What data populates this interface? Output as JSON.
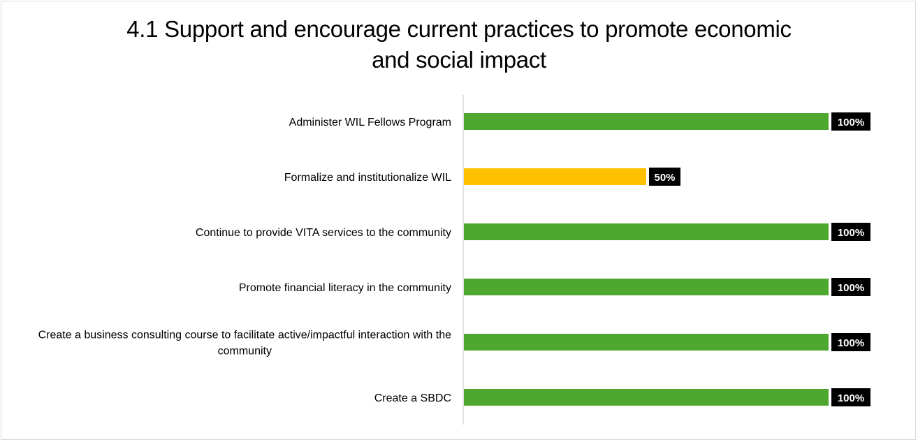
{
  "chart_data": {
    "type": "bar",
    "orientation": "horizontal",
    "title_lines": [
      "4.1 Support and encourage current practices to promote economic",
      "and social impact"
    ],
    "categories": [
      [
        "Administer WIL Fellows Program"
      ],
      [
        "Formalize and institutionalize WIL"
      ],
      [
        "Continue to provide VITA services to the community"
      ],
      [
        "Promote financial literacy in the community"
      ],
      [
        "Create a business consulting course to facilitate active/impactful interaction with the",
        "community"
      ],
      [
        "Create a SBDC"
      ]
    ],
    "values": [
      100,
      50,
      100,
      100,
      100,
      100
    ],
    "data_labels": [
      "100%",
      "50%",
      "100%",
      "100%",
      "100%",
      "100%"
    ],
    "bar_colors": [
      "#4ea72e",
      "#ffc000",
      "#4ea72e",
      "#4ea72e",
      "#4ea72e",
      "#4ea72e"
    ],
    "label_box_color": "#000000",
    "xlim": [
      0,
      100
    ],
    "grid": false,
    "legend": "none"
  }
}
